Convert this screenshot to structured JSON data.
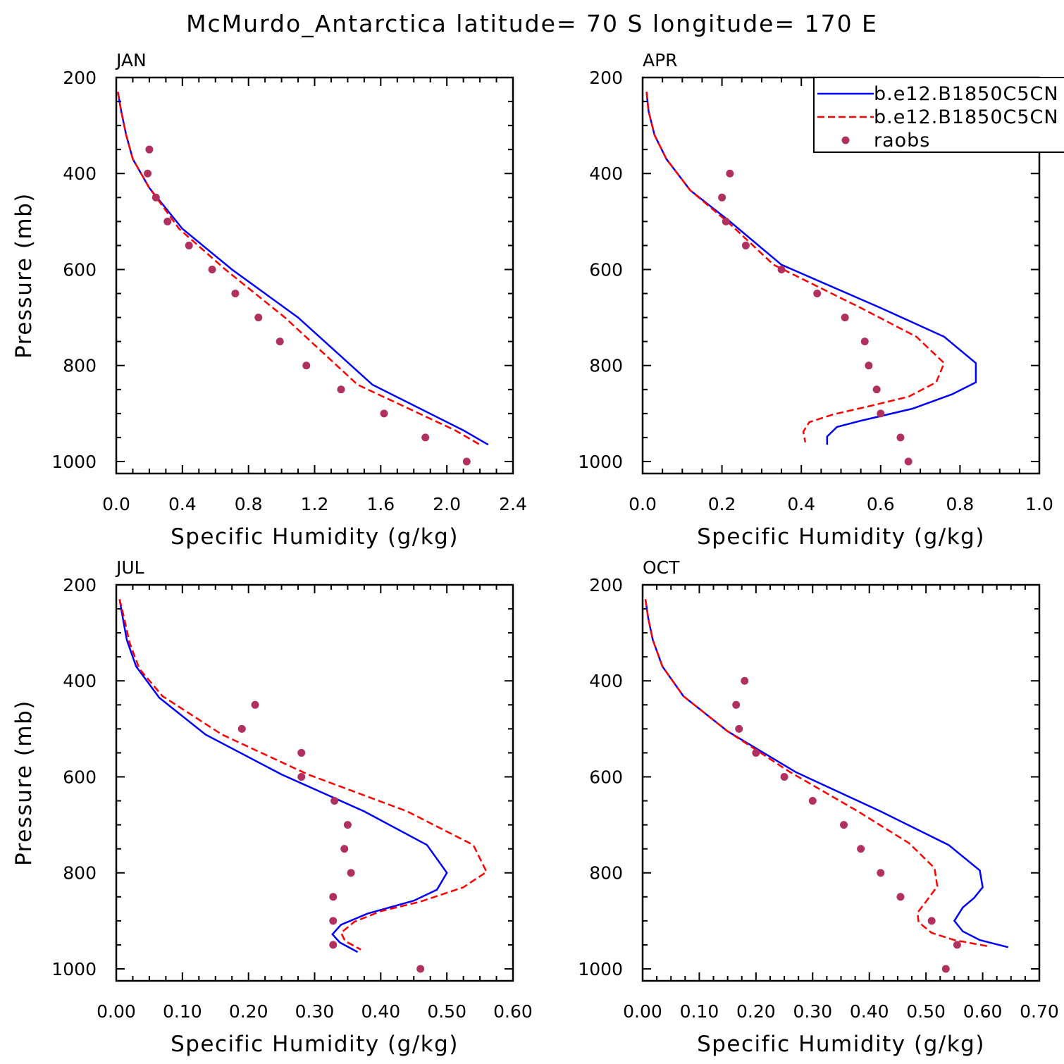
{
  "title": "McMurdo_Antarctica  latitude= 70 S longitude= 170 E",
  "colors": {
    "series1": "#0000ff",
    "series2": "#ff0000",
    "raobs": "#b03060"
  },
  "legend": {
    "placement": "top-right of APR panel",
    "entries": [
      {
        "label": "b.e12.B1850C5CN",
        "style": "solid",
        "color": "#0000ff"
      },
      {
        "label": "b.e12.B1850C5CN",
        "style": "dashed",
        "color": "#ff0000"
      },
      {
        "label": "raobs",
        "style": "dot",
        "color": "#b03060"
      }
    ]
  },
  "chart_data": [
    {
      "type": "line",
      "panel": "JAN",
      "xlabel": "Specific Humidity (g/kg)",
      "ylabel": "Pressure (mb)",
      "xlim": [
        0,
        2.4
      ],
      "ylim": [
        1025,
        200
      ],
      "y_reversed": true,
      "xticks": [
        "0.0",
        "0.4",
        "0.8",
        "1.2",
        "1.6",
        "2.0",
        "2.4"
      ],
      "yticks": [
        "200",
        "400",
        "600",
        "800",
        "1000"
      ],
      "series": [
        {
          "name": "b.e12.B1850C5CN",
          "style": "solid",
          "points": [
            [
              0.01,
              230
            ],
            [
              0.03,
              270
            ],
            [
              0.06,
              320
            ],
            [
              0.1,
              370
            ],
            [
              0.2,
              430
            ],
            [
              0.4,
              515
            ],
            [
              0.7,
              600
            ],
            [
              1.1,
              700
            ],
            [
              1.55,
              840
            ],
            [
              2.1,
              935
            ],
            [
              2.25,
              965
            ]
          ]
        },
        {
          "name": "b.e12.B1850C5CN",
          "style": "dashed",
          "points": [
            [
              0.01,
              230
            ],
            [
              0.03,
              270
            ],
            [
              0.06,
              320
            ],
            [
              0.1,
              370
            ],
            [
              0.2,
              430
            ],
            [
              0.38,
              515
            ],
            [
              0.66,
              600
            ],
            [
              1.02,
              700
            ],
            [
              1.46,
              840
            ],
            [
              2.05,
              935
            ],
            [
              2.2,
              965
            ]
          ]
        },
        {
          "name": "raobs",
          "style": "dot",
          "points": [
            [
              0.2,
              350
            ],
            [
              0.19,
              400
            ],
            [
              0.24,
              450
            ],
            [
              0.31,
              500
            ],
            [
              0.44,
              550
            ],
            [
              0.58,
              600
            ],
            [
              0.72,
              650
            ],
            [
              0.86,
              700
            ],
            [
              0.99,
              750
            ],
            [
              1.15,
              800
            ],
            [
              1.36,
              850
            ],
            [
              1.62,
              900
            ],
            [
              1.87,
              950
            ],
            [
              2.12,
              1000
            ]
          ]
        }
      ]
    },
    {
      "type": "line",
      "panel": "APR",
      "xlabel": "Specific Humidity (g/kg)",
      "ylabel": "",
      "xlim": [
        0,
        1.0
      ],
      "ylim": [
        1025,
        200
      ],
      "y_reversed": true,
      "xticks": [
        "0.0",
        "0.2",
        "0.4",
        "0.6",
        "0.8",
        "1.0"
      ],
      "yticks": [
        "200",
        "400",
        "600",
        "800",
        "1000"
      ],
      "series": [
        {
          "name": "b.e12.B1850C5CN",
          "style": "solid",
          "points": [
            [
              0.01,
              230
            ],
            [
              0.015,
              270
            ],
            [
              0.03,
              320
            ],
            [
              0.06,
              370
            ],
            [
              0.12,
              435
            ],
            [
              0.22,
              500
            ],
            [
              0.35,
              590
            ],
            [
              0.6,
              680
            ],
            [
              0.76,
              740
            ],
            [
              0.84,
              795
            ],
            [
              0.84,
              835
            ],
            [
              0.78,
              860
            ],
            [
              0.68,
              890
            ],
            [
              0.55,
              915
            ],
            [
              0.49,
              928
            ],
            [
              0.465,
              948
            ],
            [
              0.465,
              965
            ]
          ]
        },
        {
          "name": "b.e12.B1850C5CN",
          "style": "dashed",
          "points": [
            [
              0.01,
              230
            ],
            [
              0.015,
              270
            ],
            [
              0.03,
              320
            ],
            [
              0.06,
              370
            ],
            [
              0.12,
              435
            ],
            [
              0.22,
              505
            ],
            [
              0.33,
              590
            ],
            [
              0.55,
              680
            ],
            [
              0.69,
              740
            ],
            [
              0.76,
              795
            ],
            [
              0.74,
              835
            ],
            [
              0.67,
              865
            ],
            [
              0.57,
              885
            ],
            [
              0.48,
              902
            ],
            [
              0.42,
              918
            ],
            [
              0.405,
              938
            ],
            [
              0.41,
              960
            ]
          ]
        },
        {
          "name": "raobs",
          "style": "dot",
          "points": [
            [
              0.22,
              400
            ],
            [
              0.2,
              450
            ],
            [
              0.21,
              500
            ],
            [
              0.26,
              550
            ],
            [
              0.35,
              600
            ],
            [
              0.44,
              650
            ],
            [
              0.51,
              700
            ],
            [
              0.56,
              750
            ],
            [
              0.57,
              800
            ],
            [
              0.59,
              850
            ],
            [
              0.6,
              900
            ],
            [
              0.65,
              950
            ],
            [
              0.67,
              1000
            ]
          ]
        }
      ]
    },
    {
      "type": "line",
      "panel": "JUL",
      "xlabel": "Specific Humidity (g/kg)",
      "ylabel": "Pressure (mb)",
      "xlim": [
        0,
        0.6
      ],
      "ylim": [
        1025,
        200
      ],
      "y_reversed": true,
      "xticks": [
        "0.00",
        "0.10",
        "0.20",
        "0.30",
        "0.40",
        "0.50",
        "0.60"
      ],
      "yticks": [
        "200",
        "400",
        "600",
        "800",
        "1000"
      ],
      "series": [
        {
          "name": "b.e12.B1850C5CN",
          "style": "solid",
          "points": [
            [
              0.005,
              230
            ],
            [
              0.01,
              270
            ],
            [
              0.016,
              315
            ],
            [
              0.03,
              370
            ],
            [
              0.065,
              435
            ],
            [
              0.135,
              512
            ],
            [
              0.25,
              595
            ],
            [
              0.375,
              672
            ],
            [
              0.47,
              742
            ],
            [
              0.5,
              800
            ],
            [
              0.485,
              835
            ],
            [
              0.45,
              858
            ],
            [
              0.38,
              885
            ],
            [
              0.34,
              908
            ],
            [
              0.327,
              928
            ],
            [
              0.338,
              945
            ],
            [
              0.365,
              965
            ]
          ]
        },
        {
          "name": "b.e12.B1850C5CN",
          "style": "dashed",
          "points": [
            [
              0.005,
              230
            ],
            [
              0.012,
              270
            ],
            [
              0.02,
              320
            ],
            [
              0.035,
              375
            ],
            [
              0.07,
              432
            ],
            [
              0.16,
              512
            ],
            [
              0.29,
              595
            ],
            [
              0.44,
              672
            ],
            [
              0.54,
              742
            ],
            [
              0.56,
              798
            ],
            [
              0.525,
              830
            ],
            [
              0.46,
              860
            ],
            [
              0.4,
              880
            ],
            [
              0.36,
              902
            ],
            [
              0.34,
              925
            ],
            [
              0.346,
              942
            ],
            [
              0.37,
              960
            ]
          ]
        },
        {
          "name": "raobs",
          "style": "dot",
          "points": [
            [
              0.21,
              450
            ],
            [
              0.19,
              500
            ],
            [
              0.28,
              550
            ],
            [
              0.28,
              600
            ],
            [
              0.33,
              650
            ],
            [
              0.35,
              700
            ],
            [
              0.345,
              750
            ],
            [
              0.355,
              800
            ],
            [
              0.328,
              850
            ],
            [
              0.328,
              900
            ],
            [
              0.328,
              950
            ],
            [
              0.46,
              1000
            ]
          ]
        }
      ]
    },
    {
      "type": "line",
      "panel": "OCT",
      "xlabel": "Specific Humidity (g/kg)",
      "ylabel": "",
      "xlim": [
        0,
        0.7
      ],
      "ylim": [
        1025,
        200
      ],
      "y_reversed": true,
      "xticks": [
        "0.00",
        "0.10",
        "0.20",
        "0.30",
        "0.40",
        "0.50",
        "0.60",
        "0.70"
      ],
      "yticks": [
        "200",
        "400",
        "600",
        "800",
        "1000"
      ],
      "series": [
        {
          "name": "b.e12.B1850C5CN",
          "style": "solid",
          "points": [
            [
              0.005,
              230
            ],
            [
              0.01,
              270
            ],
            [
              0.018,
              315
            ],
            [
              0.035,
              370
            ],
            [
              0.072,
              432
            ],
            [
              0.15,
              505
            ],
            [
              0.27,
              590
            ],
            [
              0.42,
              672
            ],
            [
              0.54,
              742
            ],
            [
              0.595,
              795
            ],
            [
              0.6,
              830
            ],
            [
              0.585,
              852
            ],
            [
              0.565,
              872
            ],
            [
              0.55,
              900
            ],
            [
              0.565,
              922
            ],
            [
              0.595,
              940
            ],
            [
              0.645,
              955
            ]
          ]
        },
        {
          "name": "b.e12.B1850C5CN",
          "style": "dashed",
          "points": [
            [
              0.005,
              230
            ],
            [
              0.01,
              270
            ],
            [
              0.018,
              315
            ],
            [
              0.035,
              370
            ],
            [
              0.072,
              432
            ],
            [
              0.15,
              505
            ],
            [
              0.26,
              590
            ],
            [
              0.38,
              672
            ],
            [
              0.47,
              738
            ],
            [
              0.515,
              790
            ],
            [
              0.52,
              828
            ],
            [
              0.5,
              860
            ],
            [
              0.485,
              883
            ],
            [
              0.487,
              903
            ],
            [
              0.51,
              925
            ],
            [
              0.55,
              940
            ],
            [
              0.61,
              953
            ]
          ]
        },
        {
          "name": "raobs",
          "style": "dot",
          "points": [
            [
              0.18,
              400
            ],
            [
              0.165,
              450
            ],
            [
              0.17,
              500
            ],
            [
              0.2,
              550
            ],
            [
              0.25,
              600
            ],
            [
              0.3,
              650
            ],
            [
              0.355,
              700
            ],
            [
              0.385,
              750
            ],
            [
              0.42,
              800
            ],
            [
              0.455,
              850
            ],
            [
              0.51,
              900
            ],
            [
              0.555,
              950
            ],
            [
              0.535,
              1000
            ]
          ]
        }
      ]
    }
  ]
}
